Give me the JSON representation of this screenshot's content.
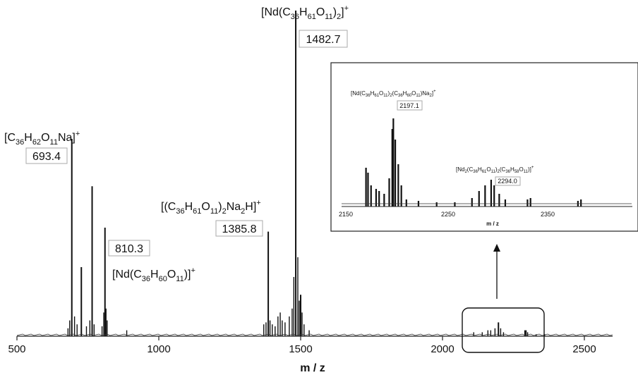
{
  "chart_data": {
    "type": "line",
    "xlabel": "m / z",
    "xlim": [
      500,
      2600
    ],
    "x_ticks": [
      500,
      1000,
      1500,
      2000,
      2500
    ],
    "grid": false,
    "legend": "none",
    "peaks": [
      {
        "x": 693.4,
        "y": 100
      },
      {
        "x": 765.0,
        "y": 76
      },
      {
        "x": 727.0,
        "y": 35
      },
      {
        "x": 810.3,
        "y": 55
      },
      {
        "x": 1385.8,
        "y": 53
      },
      {
        "x": 1482.7,
        "y": 165
      },
      {
        "x": 1500.0,
        "y": 21
      },
      {
        "x": 2197.1,
        "y": 7
      },
      {
        "x": 2294.0,
        "y": 3
      }
    ],
    "annotations": [
      {
        "value": "693.4",
        "ion": "[C36H62O11Na]+",
        "x": 693.4
      },
      {
        "value": "810.3",
        "ion": "[Nd(C36H60O11)]+",
        "x": 810.3
      },
      {
        "value": "1385.8",
        "ion": "[(C36H61O11)2Na2H]+",
        "x": 1385.8
      },
      {
        "value": "1482.7",
        "ion": "[Nd(C36H61O11)2]+",
        "x": 1482.7
      }
    ],
    "inset": {
      "type": "line",
      "xlabel": "m / z",
      "xlim": [
        2150,
        2400
      ],
      "x_ticks": [
        2150,
        2250,
        2350
      ],
      "highlight_range": [
        2090,
        2380
      ],
      "annotations": [
        {
          "value": "2197.1",
          "ion": "[Nd(C36H61O11)2(C36H60O11)Na2]+",
          "x": 2197.1
        },
        {
          "value": "2294.0",
          "ion": "[Nd2(C36H61O11)2(C36H58O11)]+",
          "x": 2294.0
        }
      ]
    }
  },
  "text": {
    "xlabel": "m / z",
    "inset_xlabel": "m / z",
    "ticks": [
      "500",
      "1000",
      "1500",
      "2000",
      "2500"
    ],
    "inset_ticks": [
      "2150",
      "2250",
      "2350"
    ],
    "v693": "693.4",
    "v810": "810.3",
    "v1385": "1385.8",
    "v1482": "1482.7",
    "v2197": "2197.1",
    "v2294": "2294.0"
  }
}
